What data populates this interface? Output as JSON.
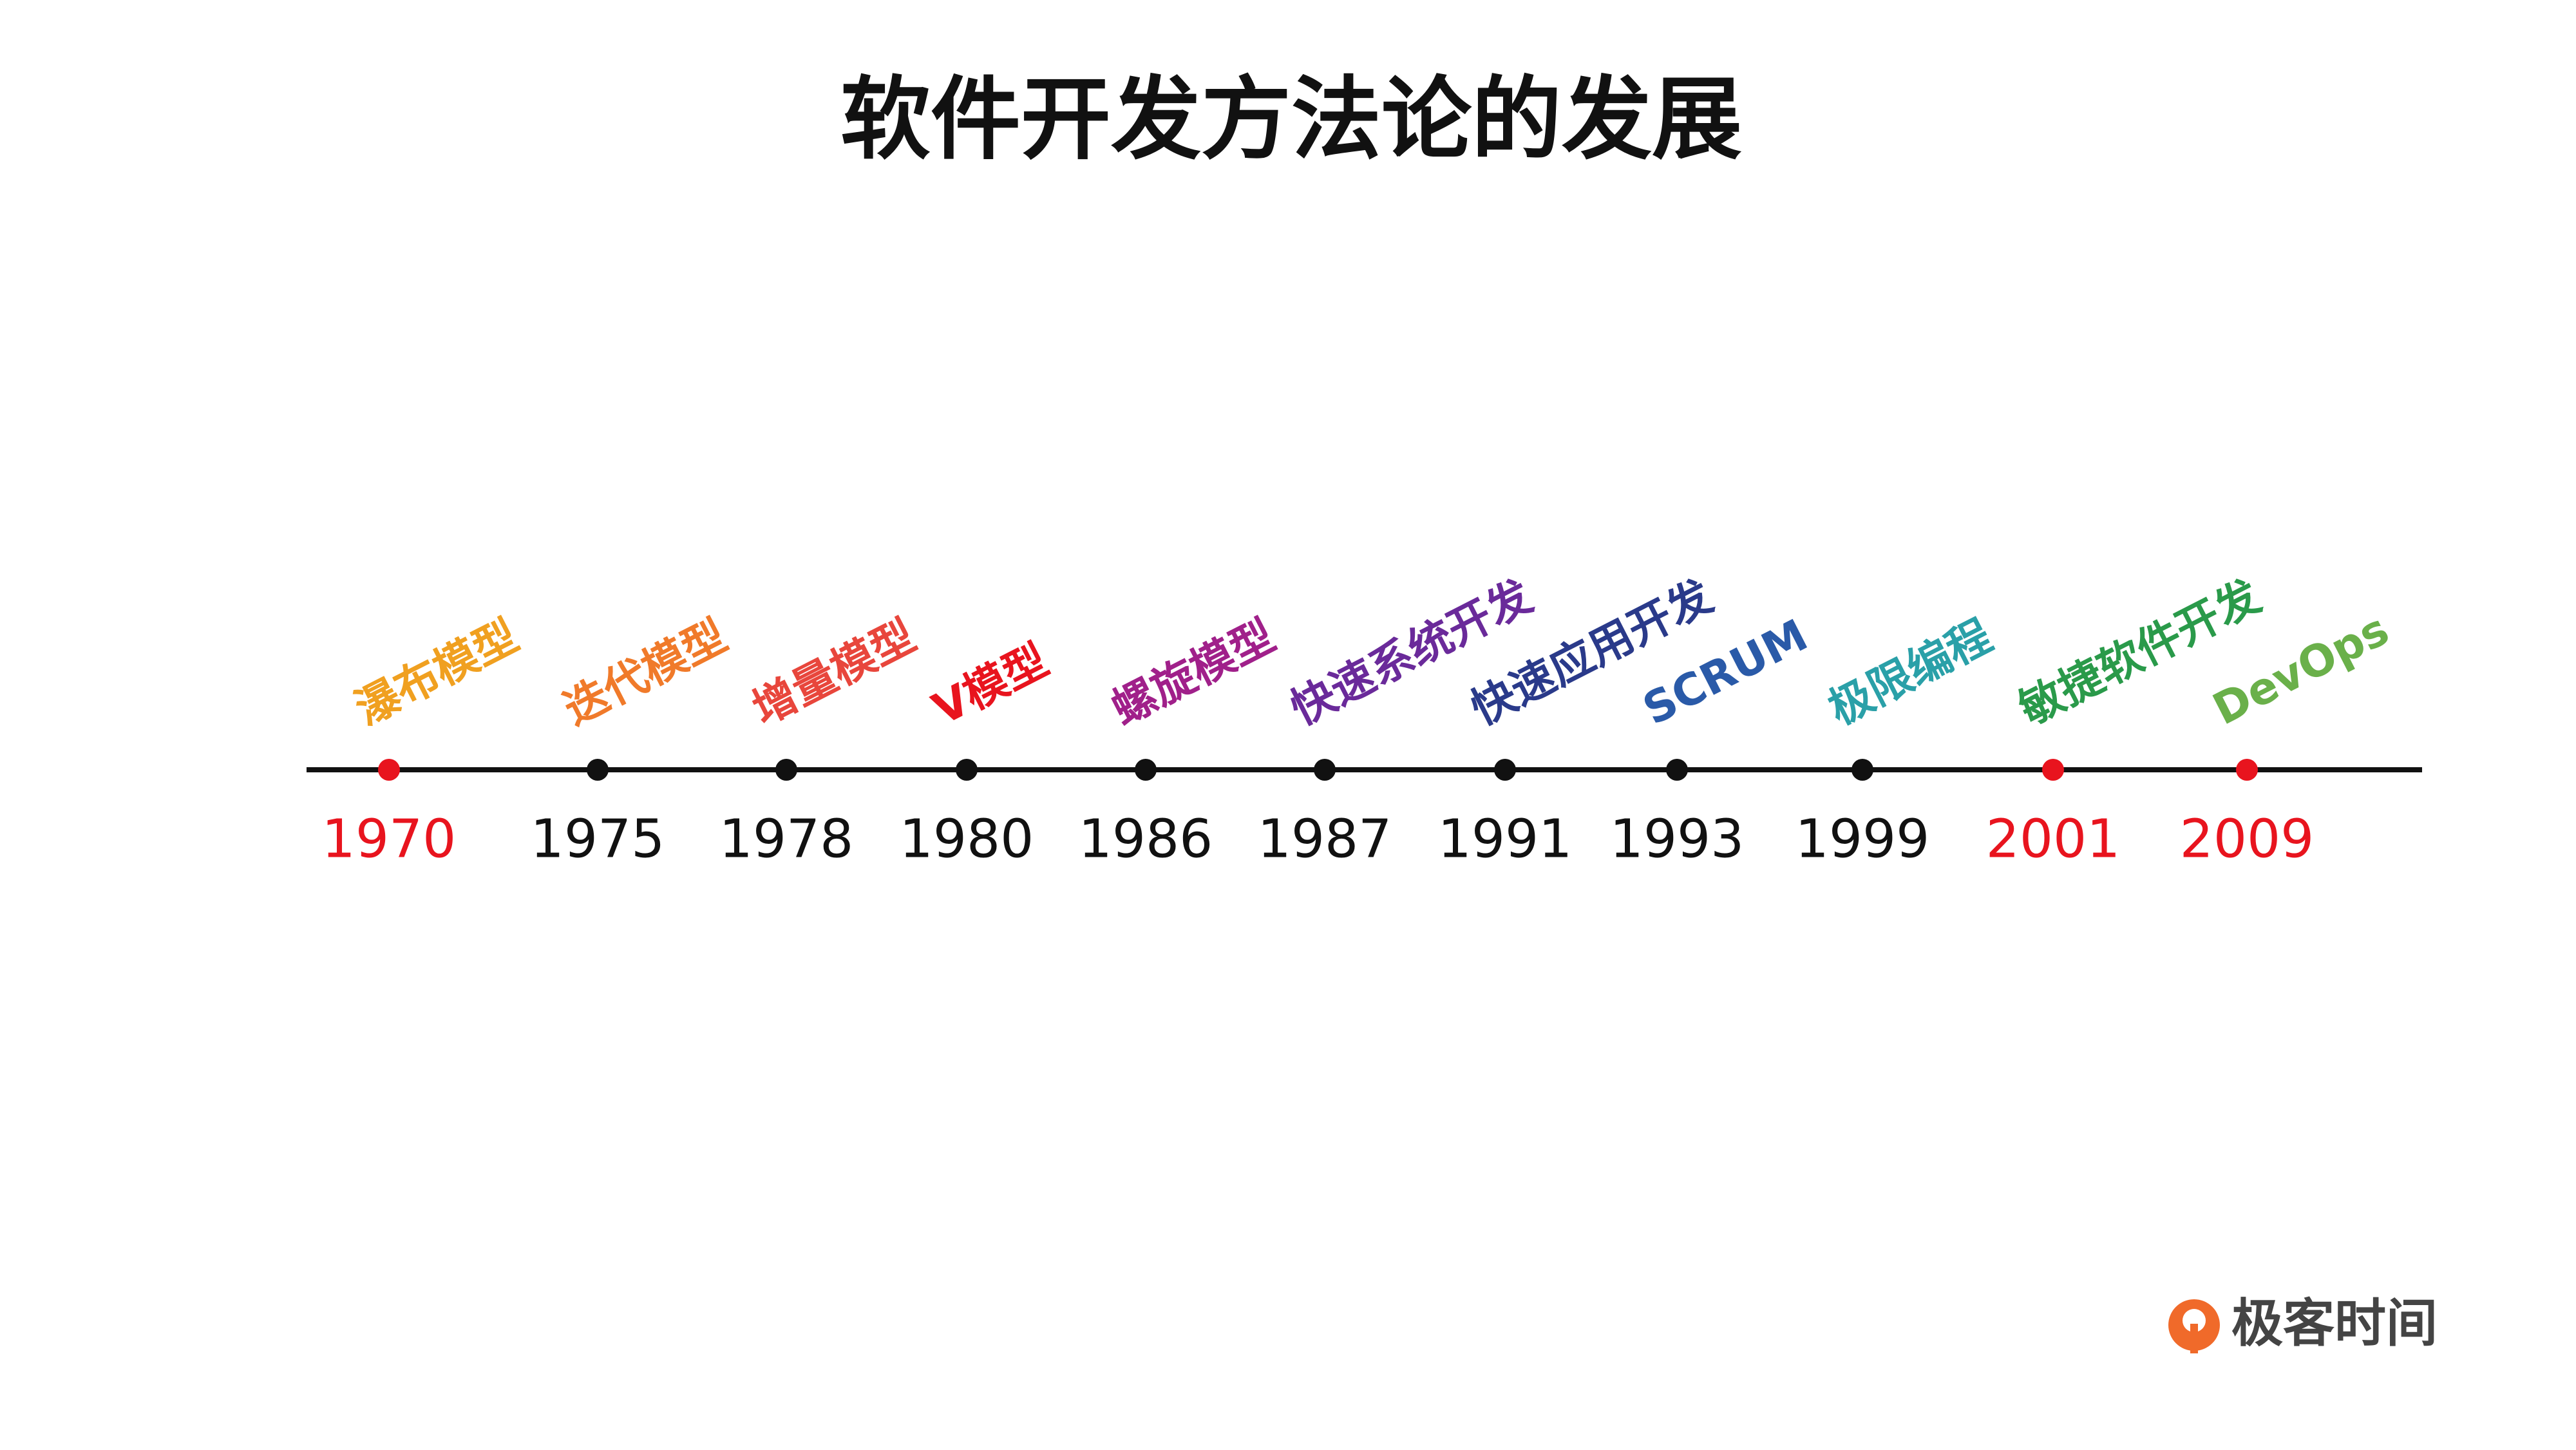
{
  "title": "软件开发方法论的发展",
  "events": [
    {
      "year": "1970",
      "label": "瀑布模型",
      "color": "#f0a020",
      "year_color": "#e8141e"
    },
    {
      "year": "1975",
      "label": "迭代模型",
      "color": "#f07a2a",
      "year_color": "#111111"
    },
    {
      "year": "1978",
      "label": "增量模型",
      "color": "#e8463c",
      "year_color": "#111111"
    },
    {
      "year": "1980",
      "label": "V模型",
      "color": "#e8141e",
      "year_color": "#111111"
    },
    {
      "year": "1986",
      "label": "螺旋模型",
      "color": "#a0208a",
      "year_color": "#111111"
    },
    {
      "year": "1987",
      "label": "快速系统开发",
      "color": "#6a2a9a",
      "year_color": "#111111"
    },
    {
      "year": "1991",
      "label": "快速应用开发",
      "color": "#2a3a8a",
      "year_color": "#111111"
    },
    {
      "year": "1993",
      "label": "SCRUM",
      "color": "#2a5aa8",
      "year_color": "#111111"
    },
    {
      "year": "1999",
      "label": "极限编程",
      "color": "#2aa0a8",
      "year_color": "#111111"
    },
    {
      "year": "2001",
      "label": "敏捷软件开发",
      "color": "#2a9a4a",
      "year_color": "#e8141e"
    },
    {
      "year": "2009",
      "label": "DevOps",
      "color": "#6ab04a",
      "year_color": "#e8141e"
    }
  ],
  "logo": "极客时间"
}
